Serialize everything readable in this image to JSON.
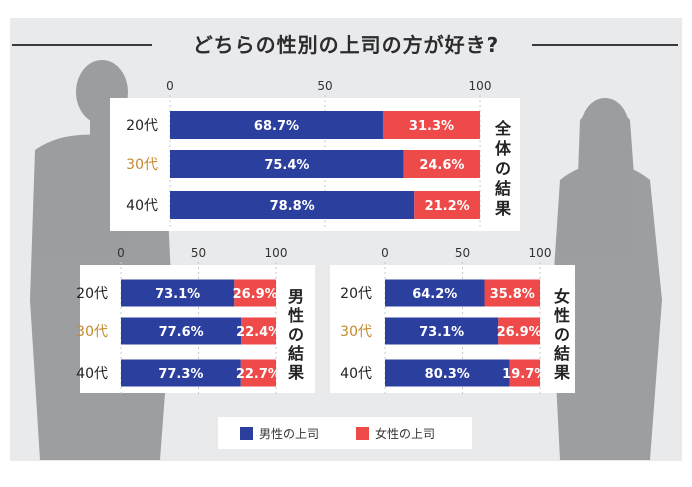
{
  "title": "どちらの性別の上司の方が好き?",
  "colors": {
    "male": "#2b3f9e",
    "female": "#ee4a4a",
    "highlight_label": "#c48a2c",
    "text": "#222222"
  },
  "legend": [
    {
      "label": "男性の上司",
      "color": "#2b3f9e"
    },
    {
      "label": "女性の上司",
      "color": "#ee4a4a"
    }
  ],
  "chart_data": [
    {
      "type": "bar",
      "stacked": true,
      "orientation": "horizontal",
      "title": "全体の結果",
      "categories": [
        "20代",
        "30代",
        "40代"
      ],
      "xticks": [
        0,
        50,
        100
      ],
      "xlim": [
        0,
        100
      ],
      "highlight_category": "30代",
      "series": [
        {
          "name": "男性の上司",
          "values": [
            68.7,
            75.4,
            78.8
          ],
          "labels": [
            "68.7%",
            "75.4%",
            "78.8%"
          ]
        },
        {
          "name": "女性の上司",
          "values": [
            31.3,
            24.6,
            21.2
          ],
          "labels": [
            "31.3%",
            "24.6%",
            "21.2%"
          ]
        }
      ]
    },
    {
      "type": "bar",
      "stacked": true,
      "orientation": "horizontal",
      "title": "男性の結果",
      "categories": [
        "20代",
        "30代",
        "40代"
      ],
      "xticks": [
        0,
        50,
        100
      ],
      "xlim": [
        0,
        100
      ],
      "highlight_category": "30代",
      "series": [
        {
          "name": "男性の上司",
          "values": [
            73.1,
            77.6,
            77.3
          ],
          "labels": [
            "73.1%",
            "77.6%",
            "77.3%"
          ]
        },
        {
          "name": "女性の上司",
          "values": [
            26.9,
            22.4,
            22.7
          ],
          "labels": [
            "26.9%",
            "22.4%",
            "22.7%"
          ]
        }
      ]
    },
    {
      "type": "bar",
      "stacked": true,
      "orientation": "horizontal",
      "title": "女性の結果",
      "categories": [
        "20代",
        "30代",
        "40代"
      ],
      "xticks": [
        0,
        50,
        100
      ],
      "xlim": [
        0,
        100
      ],
      "highlight_category": "30代",
      "series": [
        {
          "name": "男性の上司",
          "values": [
            64.2,
            73.1,
            80.3
          ],
          "labels": [
            "64.2%",
            "73.1%",
            "80.3%"
          ]
        },
        {
          "name": "女性の上司",
          "values": [
            35.8,
            26.9,
            19.7
          ],
          "labels": [
            "35.8%",
            "26.9%",
            "19.7%"
          ]
        }
      ]
    }
  ]
}
